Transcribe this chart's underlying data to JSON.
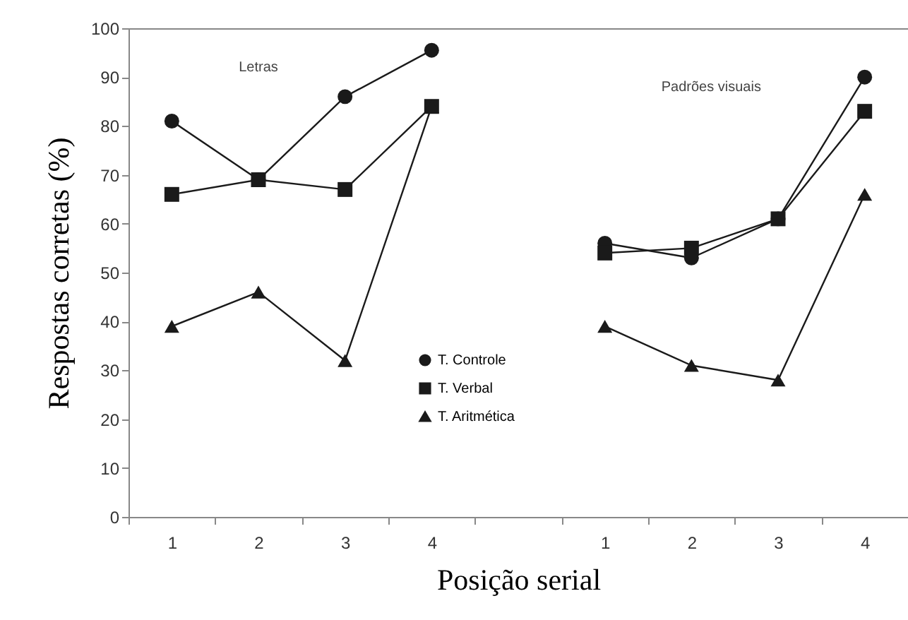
{
  "chart_data": {
    "type": "line",
    "xlabel": "Posição serial",
    "ylabel": "Respostas corretas (%)",
    "categories": [
      "1",
      "2",
      "3",
      "4",
      null,
      "1",
      "2",
      "3",
      "4"
    ],
    "series": [
      {
        "name": "T. Controle",
        "color": "#1a1a1a",
        "marker": "circle",
        "values": [
          81,
          69,
          86,
          95.5,
          null,
          56,
          53,
          61,
          90
        ]
      },
      {
        "name": "T. Verbal",
        "color": "#1a1a1a",
        "marker": "square",
        "values": [
          66,
          69,
          67,
          84,
          null,
          54,
          55,
          61,
          83
        ]
      },
      {
        "name": "T. Aritmética",
        "color": "#1a1a1a",
        "marker": "triangle",
        "values": [
          39,
          46,
          32,
          84,
          null,
          39,
          31,
          28,
          66
        ]
      }
    ],
    "ylim": [
      0,
      100
    ],
    "yticks": [
      0,
      10,
      20,
      30,
      40,
      50,
      60,
      70,
      80,
      90,
      100
    ],
    "annotations": [
      "Letras",
      "Padrões visuais"
    ],
    "legend": "bottom",
    "grid": false,
    "line_style": "solid"
  }
}
